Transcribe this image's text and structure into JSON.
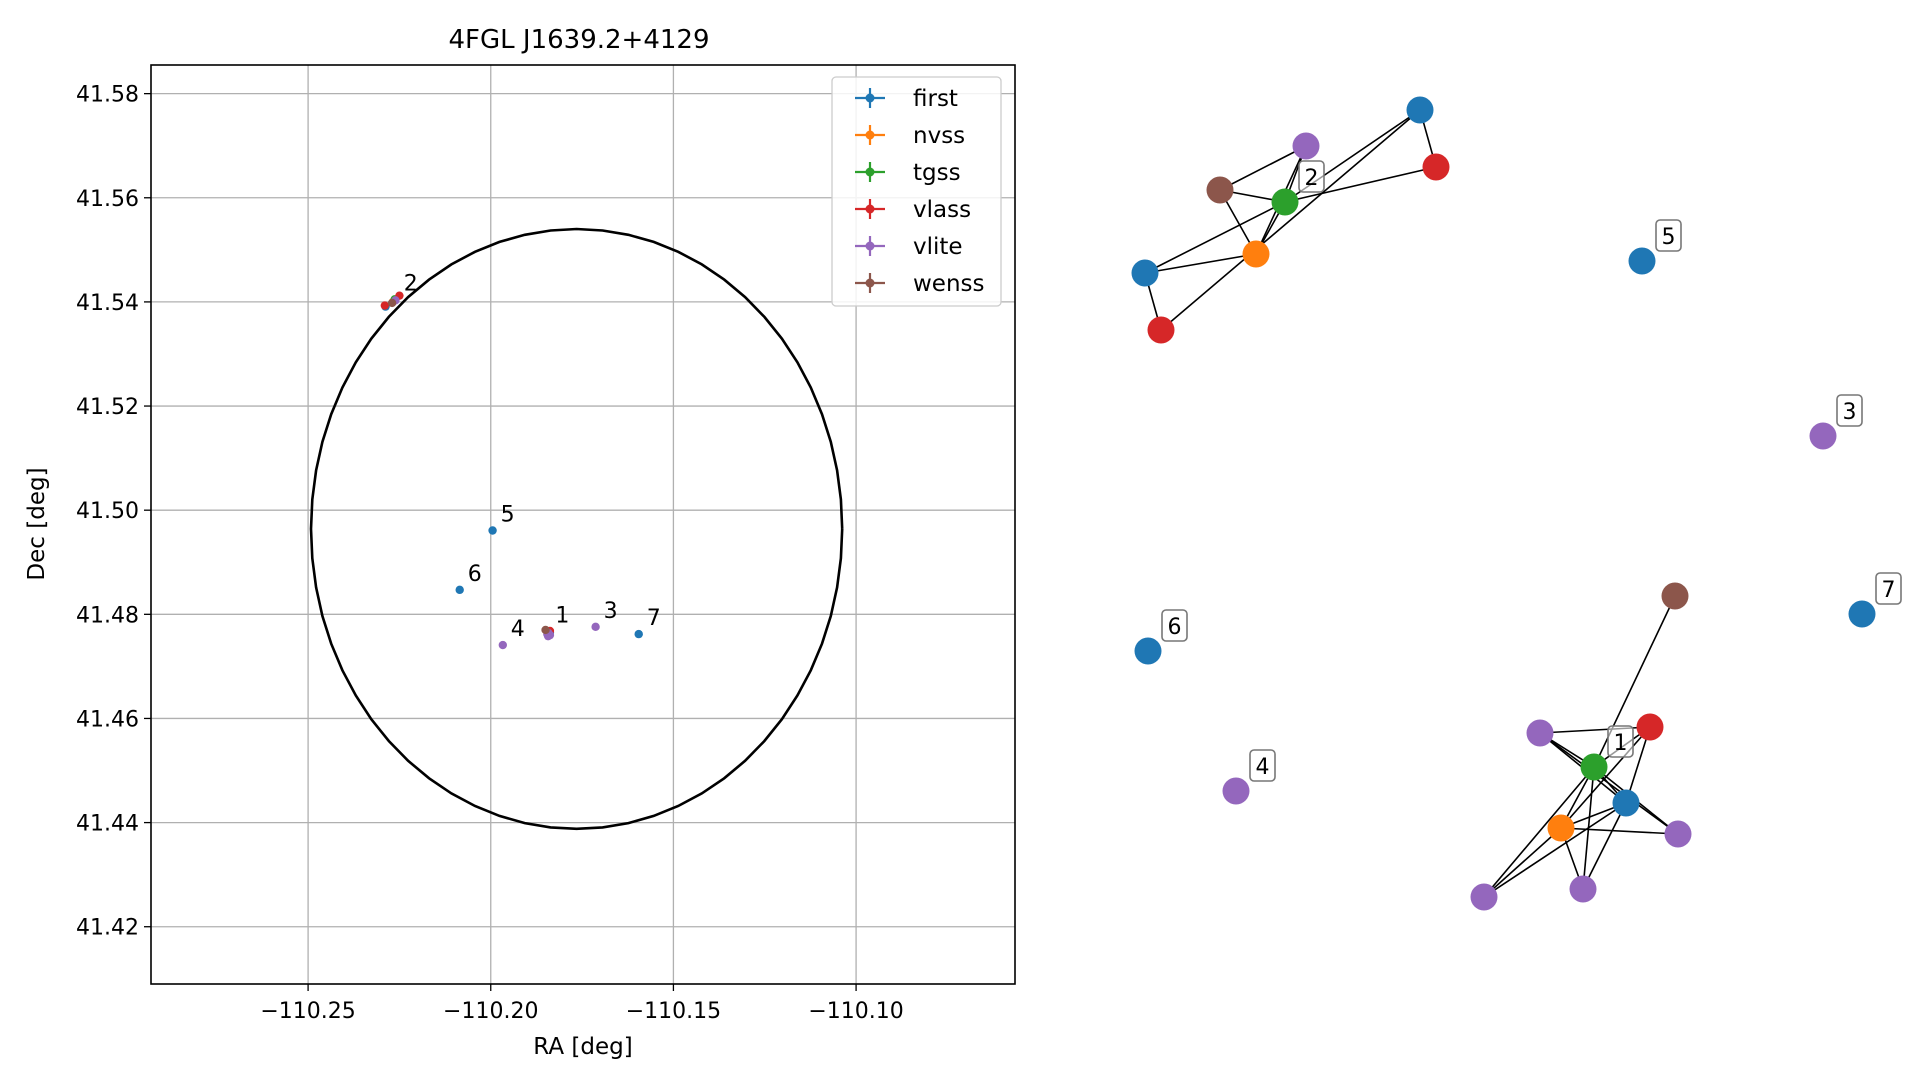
{
  "chart_data": [
    {
      "type": "scatter",
      "title": "4FGL J1639.2+4129",
      "xlabel": "RA [deg]",
      "ylabel": "Dec [deg]",
      "xlim": [
        -110.293,
        -110.0565
      ],
      "ylim": [
        41.409,
        41.5855
      ],
      "xticks": [
        -110.25,
        -110.2,
        -110.15,
        -110.1
      ],
      "xtick_labels": [
        "−110.25",
        "−110.20",
        "−110.15",
        "−110.10"
      ],
      "yticks": [
        41.42,
        41.44,
        41.46,
        41.48,
        41.5,
        41.52,
        41.54,
        41.56,
        41.58
      ],
      "ytick_labels": [
        "41.42",
        "41.44",
        "41.46",
        "41.48",
        "41.50",
        "41.52",
        "41.54",
        "41.56",
        "41.58"
      ],
      "grid": true,
      "legend_position": "upper-right",
      "ellipse": {
        "center": [
          -110.1765,
          41.4964
        ],
        "semi_axes_deg": [
          0.0727,
          0.0576
        ],
        "color": "#000000"
      },
      "series": [
        {
          "name": "first",
          "color": "#1f77b4",
          "points": [
            [
              -110.2288,
              41.5391
            ],
            [
              -110.1995,
              41.4961
            ],
            [
              -110.2085,
              41.4847
            ],
            [
              -110.1595,
              41.4762
            ],
            [
              -110.1838,
              41.4765
            ]
          ]
        },
        {
          "name": "nvss",
          "color": "#ff7f0e",
          "points": [
            [
              -110.2268,
              41.54
            ],
            [
              -110.1842,
              41.4763
            ]
          ]
        },
        {
          "name": "tgss",
          "color": "#2ca02c",
          "points": [
            [
              -110.2263,
              41.5405
            ],
            [
              -110.1843,
              41.4765
            ]
          ]
        },
        {
          "name": "vlass",
          "color": "#d62728",
          "points": [
            [
              -110.229,
              41.5393
            ],
            [
              -110.225,
              41.5412
            ],
            [
              -110.1838,
              41.4768
            ]
          ]
        },
        {
          "name": "vlite",
          "color": "#9467bd",
          "points": [
            [
              -110.2261,
              41.5403
            ],
            [
              -110.1967,
              41.4741
            ],
            [
              -110.1713,
              41.4776
            ],
            [
              -110.1843,
              41.4758
            ],
            [
              -110.1842,
              41.4764
            ],
            [
              -110.1845,
              41.4762
            ],
            [
              -110.1838,
              41.476
            ]
          ]
        },
        {
          "name": "wenss",
          "color": "#8c564b",
          "points": [
            [
              -110.227,
              41.5398
            ],
            [
              -110.185,
              41.477
            ]
          ]
        }
      ],
      "annotations": [
        {
          "text": "1",
          "x": -110.1845,
          "y": 41.4767
        },
        {
          "text": "2",
          "x": -110.226,
          "y": 41.5405
        },
        {
          "text": "3",
          "x": -110.1713,
          "y": 41.4776
        },
        {
          "text": "4",
          "x": -110.1967,
          "y": 41.4741
        },
        {
          "text": "5",
          "x": -110.1995,
          "y": 41.4961
        },
        {
          "text": "6",
          "x": -110.2085,
          "y": 41.4847
        },
        {
          "text": "7",
          "x": -110.1595,
          "y": 41.4762
        }
      ]
    },
    {
      "type": "network",
      "title": "",
      "nodes": [
        {
          "id": "a1",
          "color": "#1f77b4"
        },
        {
          "id": "a2",
          "color": "#d62728"
        },
        {
          "id": "a3",
          "color": "#8c564b"
        },
        {
          "id": "a4",
          "color": "#9467bd"
        },
        {
          "id": "a5",
          "color": "#2ca02c",
          "label": "2"
        },
        {
          "id": "a6",
          "color": "#ff7f0e"
        },
        {
          "id": "a7",
          "color": "#1f77b4"
        },
        {
          "id": "a8",
          "color": "#d62728"
        },
        {
          "id": "s5",
          "color": "#1f77b4",
          "label": "5"
        },
        {
          "id": "s3",
          "color": "#9467bd",
          "label": "3"
        },
        {
          "id": "s7",
          "color": "#1f77b4",
          "label": "7"
        },
        {
          "id": "s6",
          "color": "#1f77b4",
          "label": "6"
        },
        {
          "id": "s4",
          "color": "#9467bd",
          "label": "4"
        },
        {
          "id": "b1",
          "color": "#8c564b"
        },
        {
          "id": "b2",
          "color": "#9467bd"
        },
        {
          "id": "b3",
          "color": "#d62728"
        },
        {
          "id": "b4",
          "color": "#2ca02c",
          "label": "1"
        },
        {
          "id": "b5",
          "color": "#1f77b4"
        },
        {
          "id": "b6",
          "color": "#ff7f0e"
        },
        {
          "id": "b7",
          "color": "#9467bd"
        },
        {
          "id": "b8",
          "color": "#9467bd"
        },
        {
          "id": "b9",
          "color": "#9467bd"
        }
      ],
      "edges": [
        [
          "a3",
          "a4"
        ],
        [
          "a3",
          "a5"
        ],
        [
          "a3",
          "a6"
        ],
        [
          "a4",
          "a5"
        ],
        [
          "a4",
          "a6"
        ],
        [
          "a5",
          "a6"
        ],
        [
          "a1",
          "a5"
        ],
        [
          "a1",
          "a6"
        ],
        [
          "a5",
          "a7"
        ],
        [
          "a5",
          "a8"
        ],
        [
          "a7",
          "a8"
        ],
        [
          "a2",
          "a7"
        ],
        [
          "a2",
          "a1"
        ],
        [
          "b1",
          "b4"
        ],
        [
          "b2",
          "b3"
        ],
        [
          "b2",
          "b4"
        ],
        [
          "b2",
          "b5"
        ],
        [
          "b2",
          "b7"
        ],
        [
          "b3",
          "b4"
        ],
        [
          "b3",
          "b5"
        ],
        [
          "b3",
          "b6"
        ],
        [
          "b4",
          "b5"
        ],
        [
          "b4",
          "b6"
        ],
        [
          "b4",
          "b7"
        ],
        [
          "b4",
          "b8"
        ],
        [
          "b4",
          "b9"
        ],
        [
          "b5",
          "b6"
        ],
        [
          "b5",
          "b8"
        ],
        [
          "b5",
          "b9"
        ],
        [
          "b6",
          "b7"
        ],
        [
          "b6",
          "b8"
        ],
        [
          "b6",
          "b9"
        ]
      ]
    }
  ]
}
